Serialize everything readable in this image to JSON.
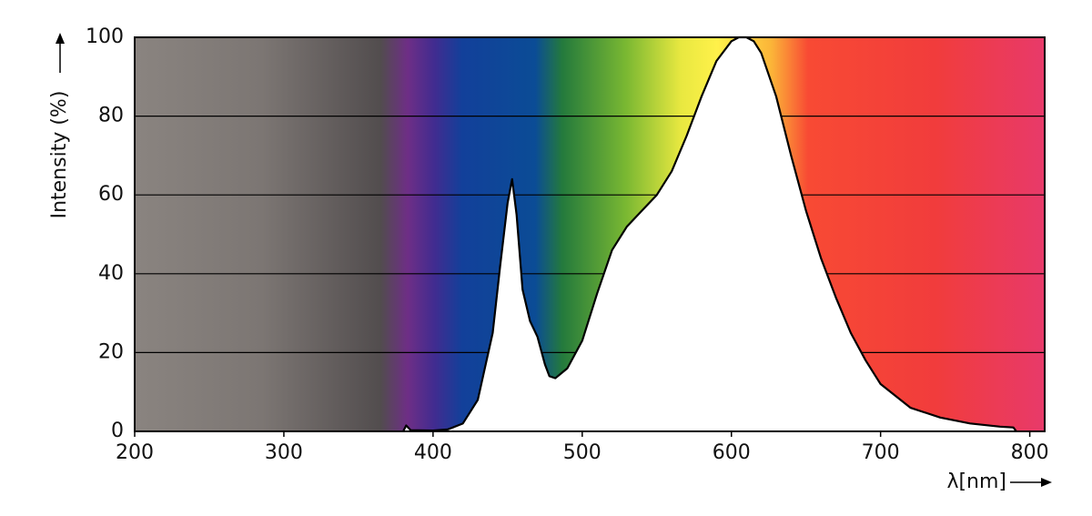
{
  "chart_data": {
    "type": "line",
    "y_label": "Intensity (%)",
    "x_label": "λ[nm]",
    "x": [
      380,
      382,
      385,
      400,
      410,
      420,
      430,
      440,
      445,
      450,
      453,
      456,
      460,
      465,
      470,
      475,
      478,
      482,
      490,
      500,
      510,
      520,
      530,
      540,
      550,
      560,
      570,
      580,
      590,
      600,
      605,
      610,
      615,
      620,
      630,
      640,
      650,
      660,
      670,
      680,
      690,
      700,
      720,
      740,
      760,
      780,
      789,
      791
    ],
    "values": [
      0,
      1.5,
      0.3,
      0.2,
      0.5,
      2,
      8,
      25,
      42,
      58,
      64,
      55,
      36,
      28,
      24,
      17,
      14,
      13.5,
      16,
      23,
      35,
      46,
      52,
      56,
      60,
      66,
      75,
      85,
      94,
      99,
      100,
      100,
      99,
      96,
      85,
      70,
      56,
      44,
      34,
      25,
      18,
      12,
      6,
      3.5,
      2,
      1.2,
      1,
      0
    ],
    "color": "#000000",
    "xlim": [
      200,
      810
    ],
    "ylim": [
      0,
      100
    ],
    "xticks": [
      200,
      300,
      400,
      500,
      600,
      700,
      800
    ],
    "yticks": [
      0,
      20,
      40,
      60,
      80,
      100
    ],
    "grid": true
  }
}
